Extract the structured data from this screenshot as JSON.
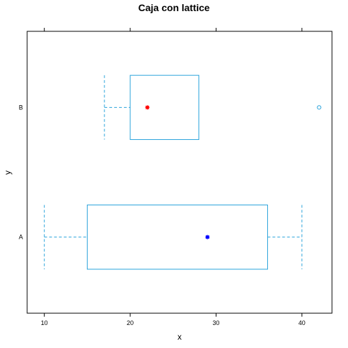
{
  "chart_data": {
    "type": "boxplot",
    "title": "Caja con lattice",
    "xlabel": "x",
    "ylabel": "y",
    "xlim": [
      8,
      43.5
    ],
    "xticks": [
      10,
      20,
      30,
      40
    ],
    "grid": false,
    "orientation": "horizontal",
    "categories": [
      "A",
      "B"
    ],
    "boxes": [
      {
        "category": "A",
        "whisker_low": 10,
        "q1": 15,
        "q3": 36,
        "whisker_high": 40,
        "mean": 29,
        "mean_color": "#0000ff",
        "outliers": []
      },
      {
        "category": "B",
        "whisker_low": 17,
        "q1": 20,
        "q3": 28,
        "whisker_high": 28,
        "mean": 22,
        "mean_color": "#ff0000",
        "outliers": [
          42
        ]
      }
    ],
    "box_color": "#29a3db"
  }
}
